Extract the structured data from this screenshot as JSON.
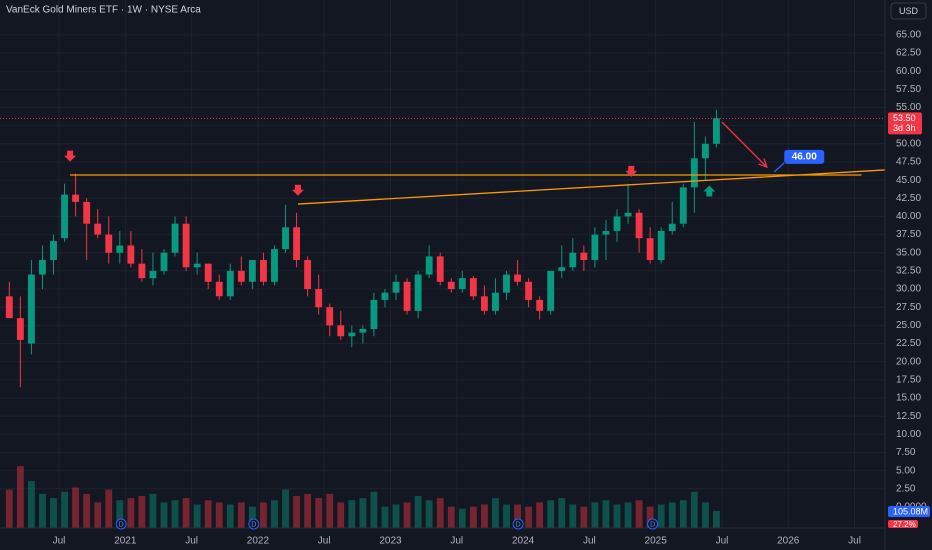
{
  "header": {
    "title": "VanEck Gold Miners ETF · 1W · NYSE Arca",
    "currency": "USD"
  },
  "chart_data": {
    "type": "candlestick",
    "x": [
      "2020-02",
      "2020-03",
      "2020-04",
      "2020-05",
      "2020-06",
      "2020-07",
      "2020-08",
      "2020-09",
      "2020-10",
      "2020-11",
      "2020-12",
      "2021-01",
      "2021-02",
      "2021-03",
      "2021-04",
      "2021-05",
      "2021-06",
      "2021-07",
      "2021-08",
      "2021-09",
      "2021-10",
      "2021-11",
      "2021-12",
      "2022-01",
      "2022-02",
      "2022-03",
      "2022-04",
      "2022-05",
      "2022-06",
      "2022-07",
      "2022-08",
      "2022-09",
      "2022-10",
      "2022-11",
      "2022-12",
      "2023-01",
      "2023-02",
      "2023-03",
      "2023-04",
      "2023-05",
      "2023-06",
      "2023-07",
      "2023-08",
      "2023-09",
      "2023-10",
      "2023-11",
      "2023-12",
      "2024-01",
      "2024-02",
      "2024-03",
      "2024-04",
      "2024-05",
      "2024-06",
      "2024-07",
      "2024-08",
      "2024-09",
      "2024-10",
      "2024-11",
      "2024-12",
      "2025-01",
      "2025-02",
      "2025-03",
      "2025-04",
      "2025-05",
      "2025-06"
    ],
    "open": [
      29,
      26,
      22.5,
      32,
      34,
      37,
      43,
      42,
      39,
      37.5,
      35,
      36,
      33.5,
      31.5,
      32.5,
      35,
      39,
      33,
      33.5,
      31,
      29,
      32.5,
      31,
      34,
      31,
      35.5,
      38.5,
      34,
      30,
      27.5,
      25,
      23.5,
      24,
      24.5,
      28.5,
      29.5,
      31,
      27,
      32,
      34.5,
      31,
      30,
      31.5,
      29,
      27,
      29.5,
      32,
      31,
      28.5,
      27,
      32.5,
      33,
      35,
      34,
      37.5,
      38,
      40,
      40.5,
      37,
      34,
      38,
      39,
      44,
      48,
      50
    ],
    "high": [
      31,
      29,
      34,
      36,
      37.5,
      44.5,
      45.9,
      42.5,
      41,
      40,
      38,
      38,
      35.5,
      35,
      35.5,
      40,
      40,
      35,
      33.5,
      32,
      33.5,
      34.5,
      34,
      35,
      36,
      41.6,
      40.5,
      34.5,
      32,
      28,
      27,
      25,
      25,
      29.5,
      30,
      32,
      31.5,
      32.5,
      36,
      35,
      31.5,
      32.5,
      31.8,
      30.5,
      31.5,
      32.5,
      34,
      31.5,
      29,
      32.5,
      36,
      37,
      36,
      38.5,
      39.5,
      41,
      44.5,
      41,
      38.5,
      38.5,
      42,
      44.5,
      53,
      51,
      54.7
    ],
    "low": [
      26,
      16.5,
      21,
      30,
      32,
      36.5,
      40,
      34,
      37,
      33.5,
      33.5,
      33,
      31,
      30.5,
      32,
      34.5,
      32.5,
      32,
      30,
      28.5,
      28.5,
      30.5,
      30,
      30.5,
      30.5,
      35,
      33,
      29,
      26.5,
      23.5,
      23,
      22,
      22.5,
      23.5,
      27.5,
      28.5,
      26.5,
      26,
      31.5,
      30.5,
      29.5,
      29.5,
      28.5,
      26.5,
      26.5,
      28.5,
      30.5,
      27.5,
      25.8,
      26.5,
      31.5,
      32.5,
      32.5,
      33,
      34,
      36.5,
      39,
      35,
      33.5,
      33.5,
      37.5,
      38.5,
      40.5,
      45,
      49.5
    ],
    "close": [
      26,
      23,
      32,
      34,
      36.6,
      43,
      42,
      39,
      37.5,
      35,
      36,
      33.5,
      31.5,
      32.5,
      35,
      39,
      33,
      33.5,
      31,
      29,
      32.5,
      31,
      34,
      31,
      35.5,
      38.5,
      34,
      30,
      27.5,
      25,
      23.5,
      24,
      24.5,
      28.5,
      29.5,
      31,
      27,
      32,
      34.5,
      31,
      30,
      31.5,
      29,
      27,
      29.5,
      32,
      31,
      28.5,
      27,
      32.5,
      33,
      35,
      34,
      37.5,
      38,
      40,
      40.5,
      37,
      34,
      38,
      39,
      44,
      48,
      50,
      53.5
    ],
    "volume": [
      900,
      1450,
      1100,
      800,
      700,
      850,
      950,
      800,
      600,
      900,
      650,
      700,
      750,
      800,
      600,
      650,
      700,
      550,
      650,
      600,
      550,
      600,
      500,
      600,
      650,
      900,
      750,
      800,
      700,
      800,
      600,
      650,
      700,
      850,
      500,
      550,
      600,
      750,
      650,
      700,
      500,
      450,
      500,
      550,
      700,
      550,
      550,
      500,
      600,
      650,
      700,
      550,
      500,
      600,
      650,
      550,
      600,
      650,
      500,
      550,
      600,
      650,
      850,
      600,
      400
    ],
    "up_color": "#089981",
    "down_color": "#f23645",
    "xlim": [
      "2020-01-21",
      "2026-09-24"
    ],
    "xticks": [
      {
        "value": "2020-07-01",
        "label": "Jul"
      },
      {
        "value": "2021-01-01",
        "label": "2021"
      },
      {
        "value": "2021-07-01",
        "label": "Jul"
      },
      {
        "value": "2022-01-01",
        "label": "2022"
      },
      {
        "value": "2022-07-01",
        "label": "Jul"
      },
      {
        "value": "2023-01-01",
        "label": "2023"
      },
      {
        "value": "2023-07-01",
        "label": "Jul"
      },
      {
        "value": "2024-01-01",
        "label": "2024"
      },
      {
        "value": "2024-07-01",
        "label": "Jul"
      },
      {
        "value": "2025-01-01",
        "label": "2025"
      },
      {
        "value": "2025-07-01",
        "label": "Jul"
      },
      {
        "value": "2026-01-01",
        "label": "2026"
      },
      {
        "value": "2026-07-01",
        "label": "Jul"
      }
    ],
    "ylim": [
      -2.9,
      69.8
    ],
    "yticks": [
      {
        "value": 2.5,
        "label": "2.50"
      },
      {
        "value": 5,
        "label": "5.00"
      },
      {
        "value": 7.5,
        "label": "7.50"
      },
      {
        "value": 10,
        "label": "10.00"
      },
      {
        "value": 12.5,
        "label": "12.50"
      },
      {
        "value": 15,
        "label": "15.00"
      },
      {
        "value": 17.5,
        "label": "17.50"
      },
      {
        "value": 20,
        "label": "20.00"
      },
      {
        "value": 22.5,
        "label": "22.50"
      },
      {
        "value": 25,
        "label": "25.00"
      },
      {
        "value": 27.5,
        "label": "27.50"
      },
      {
        "value": 30,
        "label": "30.00"
      },
      {
        "value": 32.5,
        "label": "32.50"
      },
      {
        "value": 35,
        "label": "35.00"
      },
      {
        "value": 37.5,
        "label": "37.50"
      },
      {
        "value": 40,
        "label": "40.00"
      },
      {
        "value": 42.5,
        "label": "42.50"
      },
      {
        "value": 45,
        "label": "45.00"
      },
      {
        "value": 47.5,
        "label": "47.50"
      },
      {
        "value": 50,
        "label": "50.00"
      },
      {
        "value": 52.5,
        "label": "52.50"
      },
      {
        "value": 55,
        "label": "55.00"
      },
      {
        "value": 57.5,
        "label": "57.50"
      },
      {
        "value": 60,
        "label": "60.00"
      },
      {
        "value": 62.5,
        "label": "62.50"
      },
      {
        "value": 65,
        "label": "65.00"
      }
    ],
    "grid": true,
    "volume_lim": [
      0,
      3000
    ],
    "volume_axis_label": "0.0000",
    "volume_label": "105.08M",
    "change_label": "27.2%",
    "last_price": 53.5,
    "last_price_label": "53.50",
    "countdown": "3d 3h",
    "annotations": [
      {
        "type": "line",
        "color": "#ff9800",
        "start": [
          "2020-08-01",
          45.7
        ],
        "end": [
          "2026-07-20",
          45.7
        ]
      },
      {
        "type": "line",
        "color": "#ff9800",
        "start": [
          "2022-04-20",
          41.7
        ],
        "end": [
          "2026-09-24",
          46.4
        ]
      },
      {
        "type": "arrow",
        "color": "#f23645",
        "start": [
          "2025-07-01",
          53.0
        ],
        "end": [
          "2025-11-03",
          46.8
        ]
      },
      {
        "type": "marker-down",
        "color": "#f23645",
        "at": [
          "2020-08-01",
          48.1
        ]
      },
      {
        "type": "marker-down",
        "color": "#f23645",
        "at": [
          "2022-04-20",
          43.4
        ]
      },
      {
        "type": "marker-down",
        "color": "#f23645",
        "at": [
          "2024-10-25",
          46.0
        ]
      },
      {
        "type": "marker-up",
        "color": "#089981",
        "at": [
          "2025-05-27",
          43.7
        ]
      },
      {
        "type": "callout",
        "color": "#2962ff",
        "at": [
          "2026-01-01",
          48.2
        ],
        "text": "46.00"
      }
    ],
    "dividends": {
      "label": "D",
      "x": [
        "2020-12-20",
        "2021-12-20",
        "2023-12-18",
        "2024-12-23"
      ]
    }
  }
}
